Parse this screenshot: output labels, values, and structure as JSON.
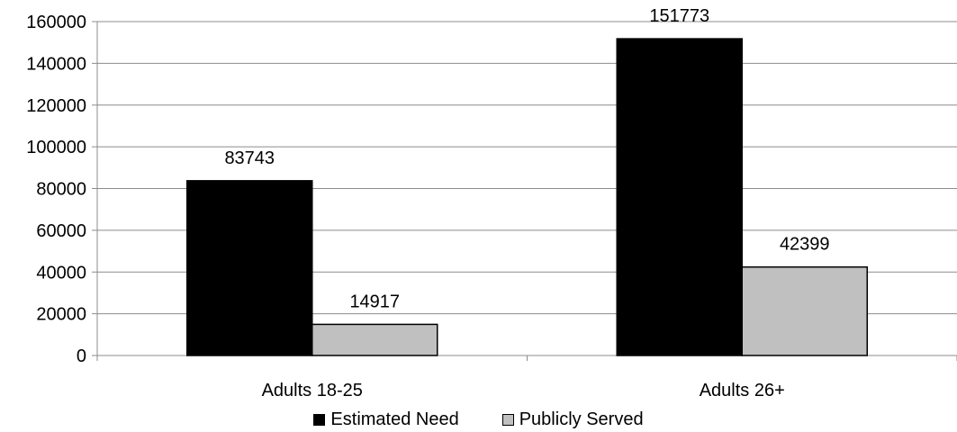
{
  "chart_data": {
    "type": "bar",
    "title": "",
    "xlabel": "",
    "ylabel": "",
    "categories": [
      "Adults 18-25",
      "Adults 26+"
    ],
    "series": [
      {
        "name": "Estimated Need",
        "values": [
          83743,
          151773
        ],
        "color": "#000000"
      },
      {
        "name": "Publicly Served",
        "values": [
          14917,
          42399
        ],
        "color": "#c0c0c0"
      }
    ],
    "data_labels": [
      [
        "83743",
        "151773"
      ],
      [
        "14917",
        "42399"
      ]
    ],
    "yticks": [
      "0",
      "20000",
      "40000",
      "60000",
      "80000",
      "100000",
      "120000",
      "140000",
      "160000"
    ],
    "ylim": [
      0,
      160000
    ],
    "grid": true,
    "legend_position": "bottom"
  }
}
